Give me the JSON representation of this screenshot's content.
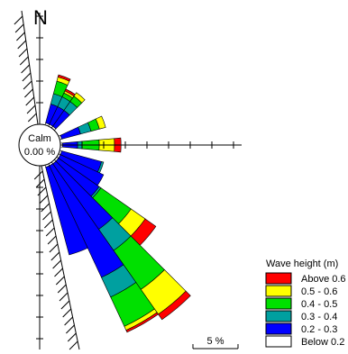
{
  "chart_data": {
    "type": "wind-rose",
    "north_label": "N",
    "calm": {
      "label": "Calm",
      "value": "0.00 %"
    },
    "scale_label": "5 %",
    "legend": {
      "title": "Wave height (m)",
      "entries": [
        {
          "label": "Above 0.6",
          "color": "#ff0000"
        },
        {
          "label": "0.5 - 0.6",
          "color": "#ffff00"
        },
        {
          "label": "0.4 - 0.5",
          "color": "#00e000"
        },
        {
          "label": "0.3 - 0.4",
          "color": "#00a0a0"
        },
        {
          "label": "0.2 - 0.3",
          "color": "#0000ff"
        },
        {
          "label": "Below 0.2",
          "color": "#ffffff"
        }
      ]
    },
    "bin_width_deg": 10,
    "class_order": [
      "Below 0.2",
      "0.2 - 0.3",
      "0.3 - 0.4",
      "0.4 - 0.5",
      "0.5 - 0.6",
      "Above 0.6"
    ],
    "sectors": [
      {
        "direction_deg": 20,
        "cumulative_percent": [
          0.1,
          1.0,
          1.5,
          2.1,
          2.3,
          2.4
        ]
      },
      {
        "direction_deg": 30,
        "cumulative_percent": [
          0.1,
          1.0,
          1.5,
          1.7,
          1.8,
          1.9
        ]
      },
      {
        "direction_deg": 40,
        "cumulative_percent": [
          0.1,
          1.0,
          1.5,
          1.8,
          2.0,
          2.0
        ]
      },
      {
        "direction_deg": 70,
        "cumulative_percent": [
          0.1,
          1.0,
          1.5,
          1.9,
          2.2,
          2.2
        ]
      },
      {
        "direction_deg": 90,
        "cumulative_percent": [
          0.1,
          0.8,
          1.0,
          1.8,
          2.5,
          2.8
        ]
      },
      {
        "direction_deg": 110,
        "cumulative_percent": [
          0.1,
          2.0,
          2.1,
          2.1,
          2.1,
          2.1
        ]
      },
      {
        "direction_deg": 120,
        "cumulative_percent": [
          0.1,
          2.3,
          2.3,
          2.3,
          2.3,
          2.3
        ]
      },
      {
        "direction_deg": 130,
        "cumulative_percent": [
          0.1,
          2.4,
          2.5,
          4.2,
          5.0,
          5.6
        ]
      },
      {
        "direction_deg": 140,
        "cumulative_percent": [
          0.1,
          3.8,
          5.0,
          7.2,
          8.6,
          8.9
        ]
      },
      {
        "direction_deg": 150,
        "cumulative_percent": [
          0.1,
          5.8,
          6.8,
          8.3,
          8.5,
          8.6
        ]
      },
      {
        "direction_deg": 160,
        "cumulative_percent": [
          0.1,
          4.3,
          4.3,
          4.3,
          4.3,
          4.3
        ]
      }
    ]
  }
}
